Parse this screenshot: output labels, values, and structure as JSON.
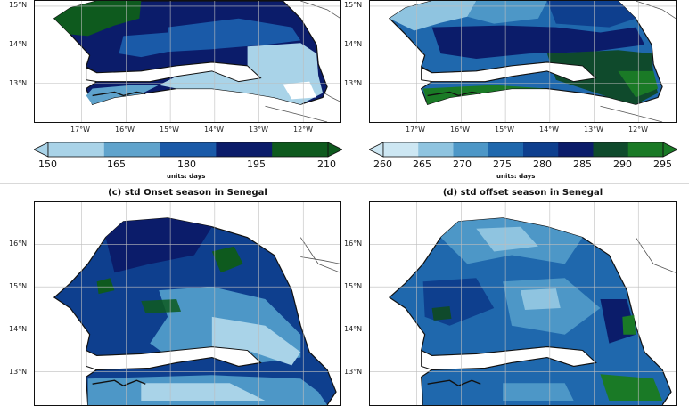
{
  "panels": {
    "a": {
      "title": "",
      "lat_ticks": [
        "15°N",
        "14°N",
        "13°N"
      ],
      "lon_ticks": [
        "17°W",
        "16°W",
        "15°W",
        "14°W",
        "13°W",
        "12°W"
      ]
    },
    "b": {
      "title": "",
      "lat_ticks": [
        "15°N",
        "14°N",
        "13°N"
      ],
      "lon_ticks": [
        "17°W",
        "16°W",
        "15°W",
        "14°W",
        "13°W",
        "12°W"
      ]
    },
    "c": {
      "title": "(c) std Onset season in Senegal",
      "lat_ticks": [
        "16°N",
        "15°N",
        "14°N",
        "13°N"
      ]
    },
    "d": {
      "title": "(d) std offset season in Senegal",
      "lat_ticks": [
        "16°N",
        "15°N",
        "14°N",
        "13°N"
      ]
    }
  },
  "colorbars": {
    "left": {
      "labels": [
        "150",
        "165",
        "180",
        "195",
        "210"
      ],
      "units": "units: days",
      "colors": [
        "#a9d3e8",
        "#5fa3cc",
        "#1a5aa8",
        "#0b1c6a",
        "#0e5a1e"
      ]
    },
    "right": {
      "labels": [
        "260",
        "265",
        "270",
        "275",
        "280",
        "285",
        "290",
        "295"
      ],
      "units": "units: days",
      "colors": [
        "#cde7f3",
        "#8fc4e0",
        "#4d97c7",
        "#1f68ad",
        "#0e3f8e",
        "#0b1c6a",
        "#0f4a2c",
        "#1a7a26"
      ]
    }
  },
  "colors": {
    "land_boundary": "#111111",
    "gambia": "#ffffff",
    "grid": "#bdbdbd"
  }
}
